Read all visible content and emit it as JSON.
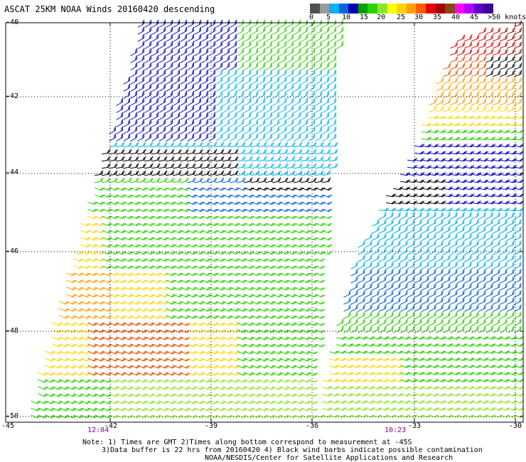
{
  "title": "ASCAT 25KM NOAA Winds 20160420 descending",
  "legend": {
    "labels": [
      "0",
      "5",
      "10",
      "15",
      "20",
      "25",
      "30",
      "35",
      "40",
      "45",
      ">50 knots"
    ],
    "colors": [
      "#505050",
      "#9a9a9a",
      "#00b4f0",
      "#0a64dc",
      "#0000b4",
      "#00a000",
      "#28d200",
      "#8ce628",
      "#ffff00",
      "#ffd200",
      "#ffa000",
      "#ff5a00",
      "#e60000",
      "#a50000",
      "#8b4513",
      "#ff00ff",
      "#b400ff",
      "#6400c8",
      "#3c0096"
    ]
  },
  "map": {
    "lat_labels": [
      "-40",
      "-42",
      "-44",
      "-46",
      "-48",
      "-50"
    ],
    "lon_labels": [
      "-45",
      "-42",
      "-39",
      "-36",
      "-33",
      "-30"
    ],
    "time_labels": [
      "12:04",
      "10:23"
    ]
  },
  "notes": [
    "Note: 1) Times are GMT 2)Times along bottom correspond to measurement at -45S",
    "3)Data buffer is 22 hrs from 20160420 4) Black wind barbs indicate possible contamination",
    "NOAA/NESDIS/Center for Satellite Applications and Research"
  ]
}
